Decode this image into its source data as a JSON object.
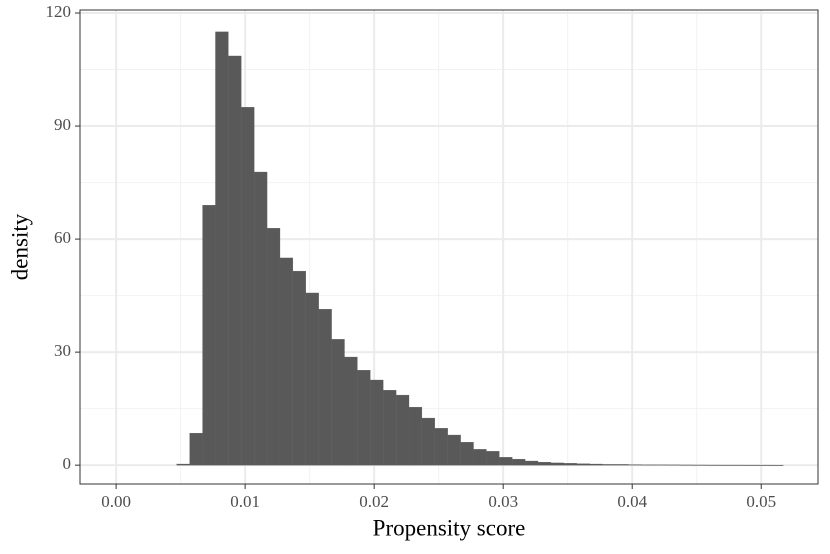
{
  "chart_data": {
    "type": "histogram",
    "x_label": "Propensity score",
    "y_label": "density",
    "bins": [
      0.0047,
      0.0057,
      0.0067,
      0.0077,
      0.0087,
      0.0097,
      0.0107,
      0.0117,
      0.0127,
      0.0137,
      0.0147,
      0.0157,
      0.0167,
      0.0177,
      0.0187,
      0.0197,
      0.0207,
      0.0217,
      0.0227,
      0.0237,
      0.0247,
      0.0257,
      0.0267,
      0.0277,
      0.0287,
      0.0297,
      0.0307,
      0.0317,
      0.0327,
      0.0337,
      0.0347,
      0.0357,
      0.0367,
      0.0377,
      0.0387,
      0.0397,
      0.0407,
      0.0417,
      0.0427,
      0.0437,
      0.0447,
      0.0457,
      0.0467,
      0.0477,
      0.0487,
      0.0497,
      0.0507,
      0.0517
    ],
    "values": [
      0.3,
      8.5,
      69,
      115,
      108.6,
      95,
      77.8,
      62.9,
      55,
      51.5,
      45.7,
      41.4,
      33.4,
      28.7,
      25.2,
      22.6,
      19.9,
      18.6,
      15.4,
      12.5,
      9.8,
      8,
      6.1,
      4.2,
      3.7,
      2.1,
      1.6,
      1.1,
      0.8,
      0.6,
      0.5,
      0.4,
      0.3,
      0.2,
      0.2,
      0.15,
      0.1,
      0.1,
      0.08,
      0.06,
      0.05,
      0.04,
      0.03,
      0.03,
      0.02,
      0.02,
      0.01
    ],
    "color": "#595959",
    "xlim": [
      -0.0028,
      0.0544
    ],
    "xticks": [
      {
        "value": 0,
        "label": "0.00"
      },
      {
        "value": 0.01,
        "label": "0.01"
      },
      {
        "value": 0.02,
        "label": "0.02"
      },
      {
        "value": 0.03,
        "label": "0.03"
      },
      {
        "value": 0.04,
        "label": "0.04"
      },
      {
        "value": 0.05,
        "label": "0.05"
      }
    ],
    "ylim": [
      -5,
      120.8
    ],
    "yticks": [
      0,
      30,
      60,
      90,
      120
    ],
    "grid": true
  }
}
